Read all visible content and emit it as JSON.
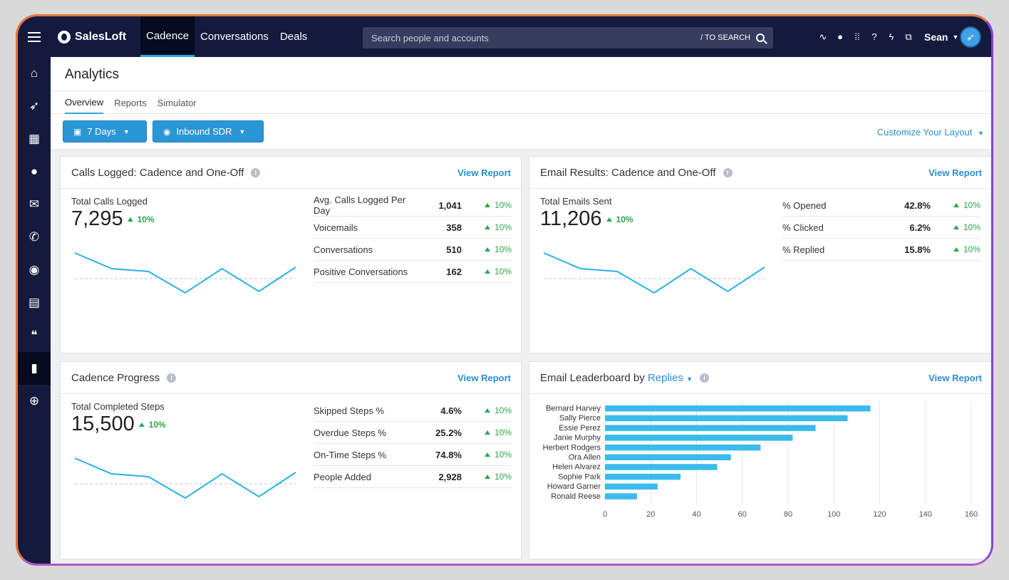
{
  "brand": {
    "name": "SalesLoft",
    "accent": "#29a8e0",
    "nav_bg": "#141a3d"
  },
  "topnav": {
    "tabs": [
      {
        "label": "Cadence",
        "active": true
      },
      {
        "label": "Conversations"
      },
      {
        "label": "Deals"
      }
    ],
    "search": {
      "placeholder": "Search people and accounts",
      "hint": "/ TO SEARCH"
    },
    "icons": [
      "pulse-icon",
      "chat-icon",
      "dialpad-icon",
      "help-icon",
      "bolt-icon",
      "org-icon"
    ],
    "user": "Sean"
  },
  "sidebar": {
    "items": [
      {
        "name": "home-icon",
        "glyph": "⌂"
      },
      {
        "name": "rocket-icon",
        "glyph": "➶"
      },
      {
        "name": "building-icon",
        "glyph": "▦"
      },
      {
        "name": "person-icon",
        "glyph": "●"
      },
      {
        "name": "mail-icon",
        "glyph": "✉"
      },
      {
        "name": "phone-icon",
        "glyph": "✆"
      },
      {
        "name": "aperture-icon",
        "glyph": "◉"
      },
      {
        "name": "document-icon",
        "glyph": "▤"
      },
      {
        "name": "quote-icon",
        "glyph": "❝"
      },
      {
        "name": "analytics-icon",
        "glyph": "▮",
        "active": true
      },
      {
        "name": "target-icon",
        "glyph": "⊕"
      }
    ]
  },
  "page": {
    "title": "Analytics",
    "subtabs": [
      {
        "label": "Overview",
        "active": true
      },
      {
        "label": "Reports"
      },
      {
        "label": "Simulator"
      }
    ],
    "filters": {
      "range": "7 Days",
      "team": "Inbound SDR",
      "customize": "Customize Your Layout"
    }
  },
  "cards": {
    "calls": {
      "title": "Calls Logged: Cadence and One-Off",
      "view": "View Report",
      "big_label": "Total Calls Logged",
      "big_value": "7,295",
      "big_delta": "10%",
      "spark": [
        73,
        62,
        60,
        45,
        62,
        46,
        63
      ],
      "metrics": [
        {
          "label": "Avg. Calls Logged Per Day",
          "value": "1,041",
          "delta": "10%"
        },
        {
          "label": "Voicemails",
          "value": "358",
          "delta": "10%"
        },
        {
          "label": "Conversations",
          "value": "510",
          "delta": "10%"
        },
        {
          "label": "Positive Conversations",
          "value": "162",
          "delta": "10%"
        }
      ]
    },
    "email": {
      "title": "Email Results: Cadence and One-Off",
      "view": "View Report",
      "big_label": "Total Emails Sent",
      "big_value": "11,206",
      "big_delta": "10%",
      "spark": [
        73,
        62,
        60,
        45,
        62,
        46,
        63
      ],
      "metrics": [
        {
          "label": "% Opened",
          "value": "42.8%",
          "delta": "10%"
        },
        {
          "label": "% Clicked",
          "value": "6.2%",
          "delta": "10%"
        },
        {
          "label": "% Replied",
          "value": "15.8%",
          "delta": "10%"
        }
      ]
    },
    "cadence": {
      "title": "Cadence Progress",
      "view": "View Report",
      "big_label": "Total Completed Steps",
      "big_value": "15,500",
      "big_delta": "10%",
      "spark": [
        73,
        62,
        60,
        45,
        62,
        46,
        63
      ],
      "metrics": [
        {
          "label": "Skipped Steps %",
          "value": "4.6%",
          "delta": "10%"
        },
        {
          "label": "Overdue Steps %",
          "value": "25.2%",
          "delta": "10%"
        },
        {
          "label": "On-Time Steps %",
          "value": "74.8%",
          "delta": "10%"
        },
        {
          "label": "People Added",
          "value": "2,928",
          "delta": "10%"
        }
      ]
    },
    "leaderboard": {
      "title_prefix": "Email Leaderboard by",
      "title_metric": "Replies",
      "view": "View Report"
    }
  },
  "chart_data": {
    "type": "bar",
    "orientation": "horizontal",
    "categories": [
      "Bernard Harvey",
      "Sally Pierce",
      "Essie Perez",
      "Janie Murphy",
      "Herbert Rodgers",
      "Ora Allen",
      "Helen Alvarez",
      "Sophie Park",
      "Howard Garner",
      "Ronald Reese"
    ],
    "values": [
      116,
      106,
      92,
      82,
      68,
      55,
      49,
      33,
      23,
      14
    ],
    "xlim": [
      0,
      160
    ],
    "xticks": [
      0,
      20,
      40,
      60,
      80,
      100,
      120,
      140,
      160
    ],
    "grid": true,
    "color": "#3bbbeb"
  }
}
